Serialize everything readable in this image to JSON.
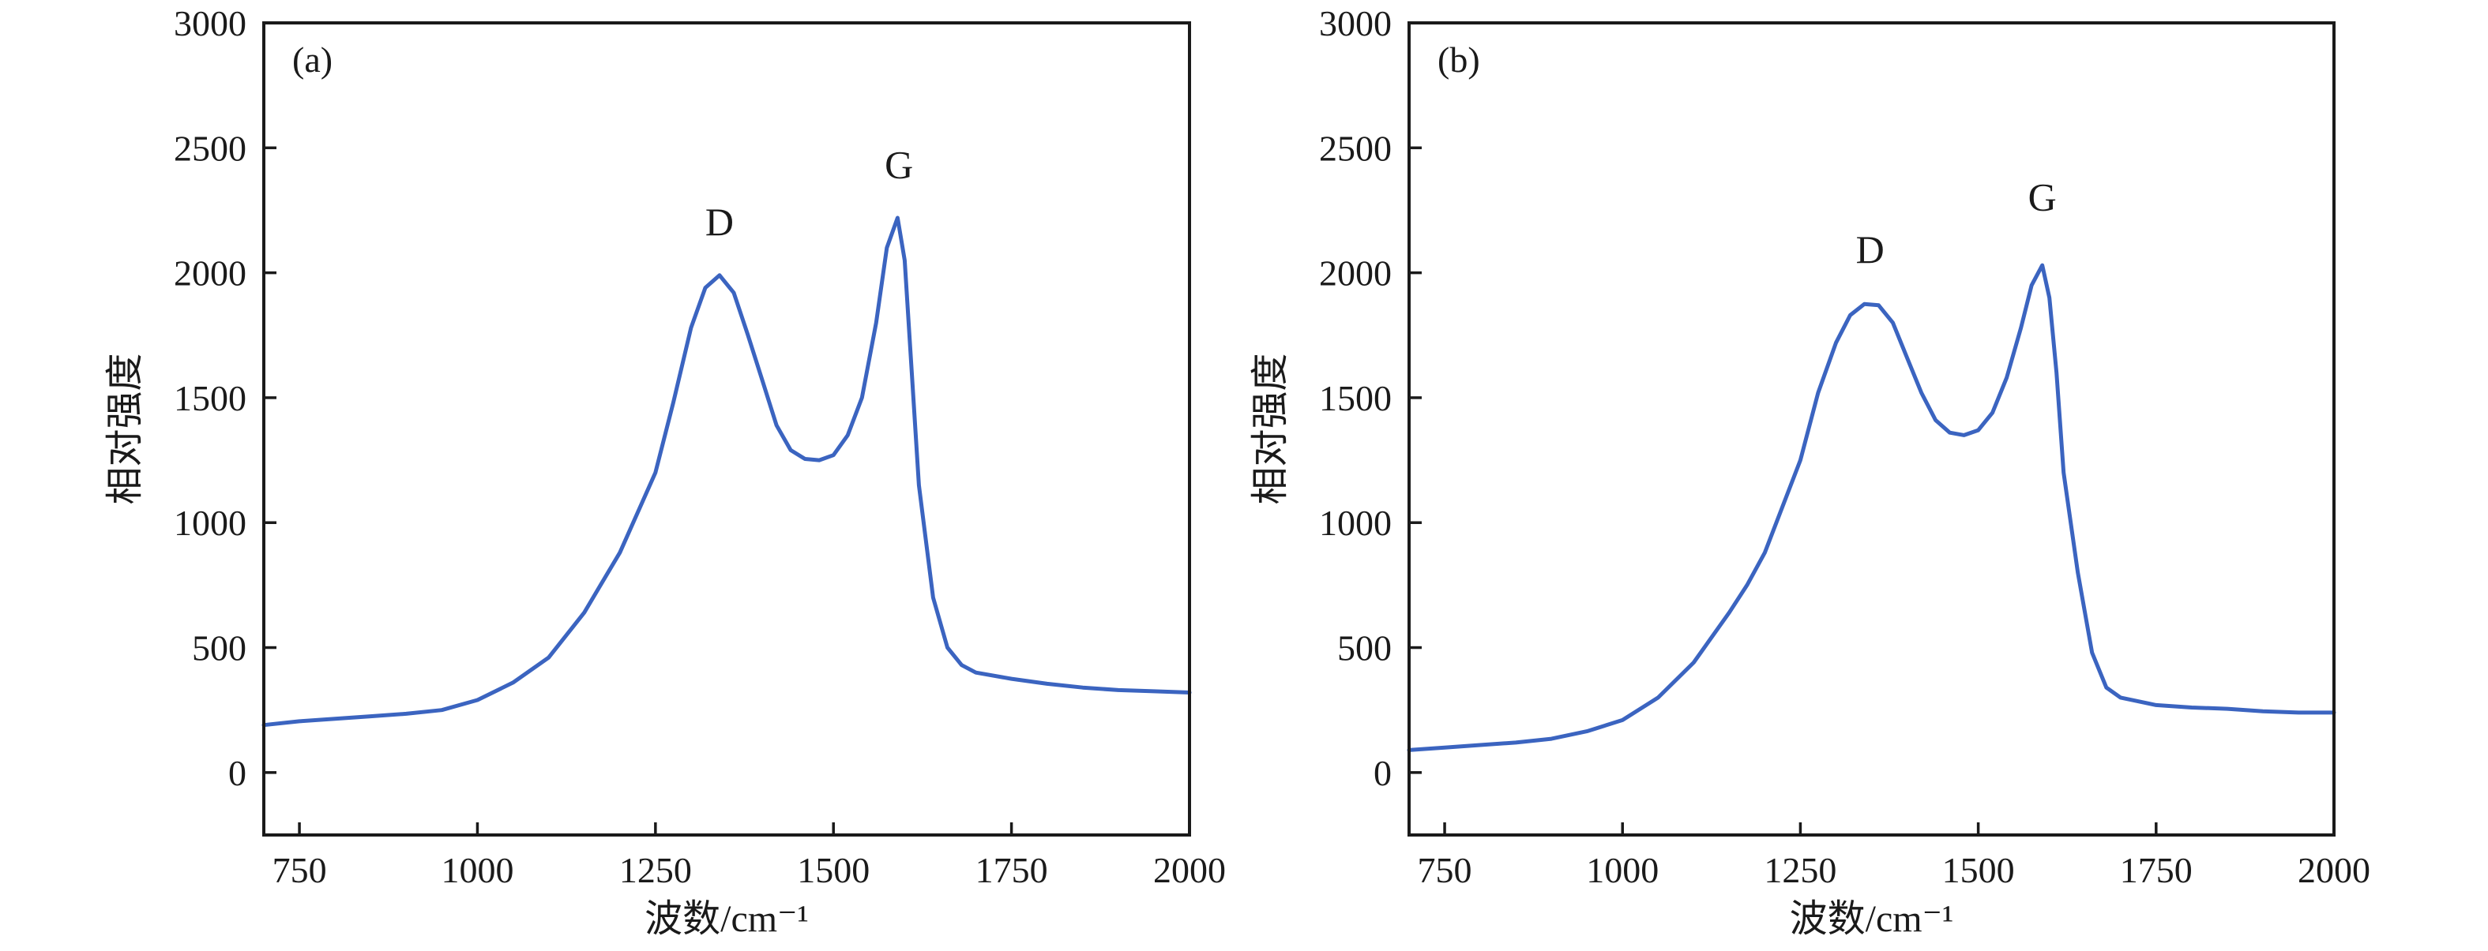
{
  "chart_data": [
    {
      "type": "line",
      "panel_label": "(a)",
      "xlabel": "波数/cm⁻¹",
      "ylabel": "相对强度",
      "xlim": [
        700,
        2000
      ],
      "ylim": [
        -250,
        3000
      ],
      "x_ticks": [
        750,
        1000,
        1250,
        1500,
        1750,
        2000
      ],
      "y_ticks": [
        0,
        500,
        1000,
        1500,
        2000,
        2500,
        3000
      ],
      "grid": false,
      "line_color": "#3b64c0",
      "series": [
        {
          "x": [
            700,
            750,
            800,
            850,
            900,
            950,
            1000,
            1050,
            1100,
            1150,
            1175,
            1200,
            1250,
            1275,
            1300,
            1320,
            1340,
            1360,
            1380,
            1400,
            1420,
            1440,
            1460,
            1480,
            1500,
            1520,
            1540,
            1560,
            1575,
            1590,
            1600,
            1610,
            1620,
            1640,
            1660,
            1680,
            1700,
            1750,
            1800,
            1850,
            1900,
            1950,
            2000
          ],
          "y": [
            190,
            205,
            215,
            225,
            235,
            250,
            290,
            360,
            460,
            640,
            760,
            880,
            1200,
            1480,
            1780,
            1940,
            1990,
            1920,
            1750,
            1570,
            1390,
            1290,
            1255,
            1250,
            1270,
            1350,
            1500,
            1800,
            2100,
            2220,
            2050,
            1600,
            1150,
            700,
            500,
            430,
            400,
            375,
            355,
            340,
            330,
            325,
            320
          ]
        }
      ],
      "annotations": [
        {
          "text": "D",
          "x": 1340,
          "y": 2150
        },
        {
          "text": "G",
          "x": 1592,
          "y": 2380
        }
      ]
    },
    {
      "type": "line",
      "panel_label": "(b)",
      "xlabel": "波数/cm⁻¹",
      "ylabel": "相对强度",
      "xlim": [
        700,
        2000
      ],
      "ylim": [
        -250,
        3000
      ],
      "x_ticks": [
        750,
        1000,
        1250,
        1500,
        1750,
        2000
      ],
      "y_ticks": [
        0,
        500,
        1000,
        1500,
        2000,
        2500,
        3000
      ],
      "grid": false,
      "line_color": "#3b64c0",
      "series": [
        {
          "x": [
            700,
            750,
            800,
            850,
            900,
            950,
            1000,
            1050,
            1100,
            1150,
            1175,
            1200,
            1250,
            1275,
            1300,
            1320,
            1340,
            1360,
            1380,
            1400,
            1420,
            1440,
            1460,
            1480,
            1500,
            1520,
            1540,
            1560,
            1575,
            1590,
            1600,
            1610,
            1620,
            1640,
            1660,
            1680,
            1700,
            1750,
            1800,
            1850,
            1900,
            1950,
            2000
          ],
          "y": [
            90,
            100,
            110,
            120,
            135,
            165,
            210,
            300,
            440,
            640,
            750,
            880,
            1250,
            1520,
            1720,
            1830,
            1875,
            1870,
            1800,
            1660,
            1520,
            1410,
            1360,
            1350,
            1370,
            1440,
            1580,
            1780,
            1950,
            2030,
            1900,
            1600,
            1200,
            800,
            480,
            340,
            300,
            270,
            260,
            255,
            245,
            240,
            240
          ]
        }
      ],
      "annotations": [
        {
          "text": "D",
          "x": 1348,
          "y": 2040
        },
        {
          "text": "G",
          "x": 1590,
          "y": 2250
        }
      ]
    }
  ]
}
